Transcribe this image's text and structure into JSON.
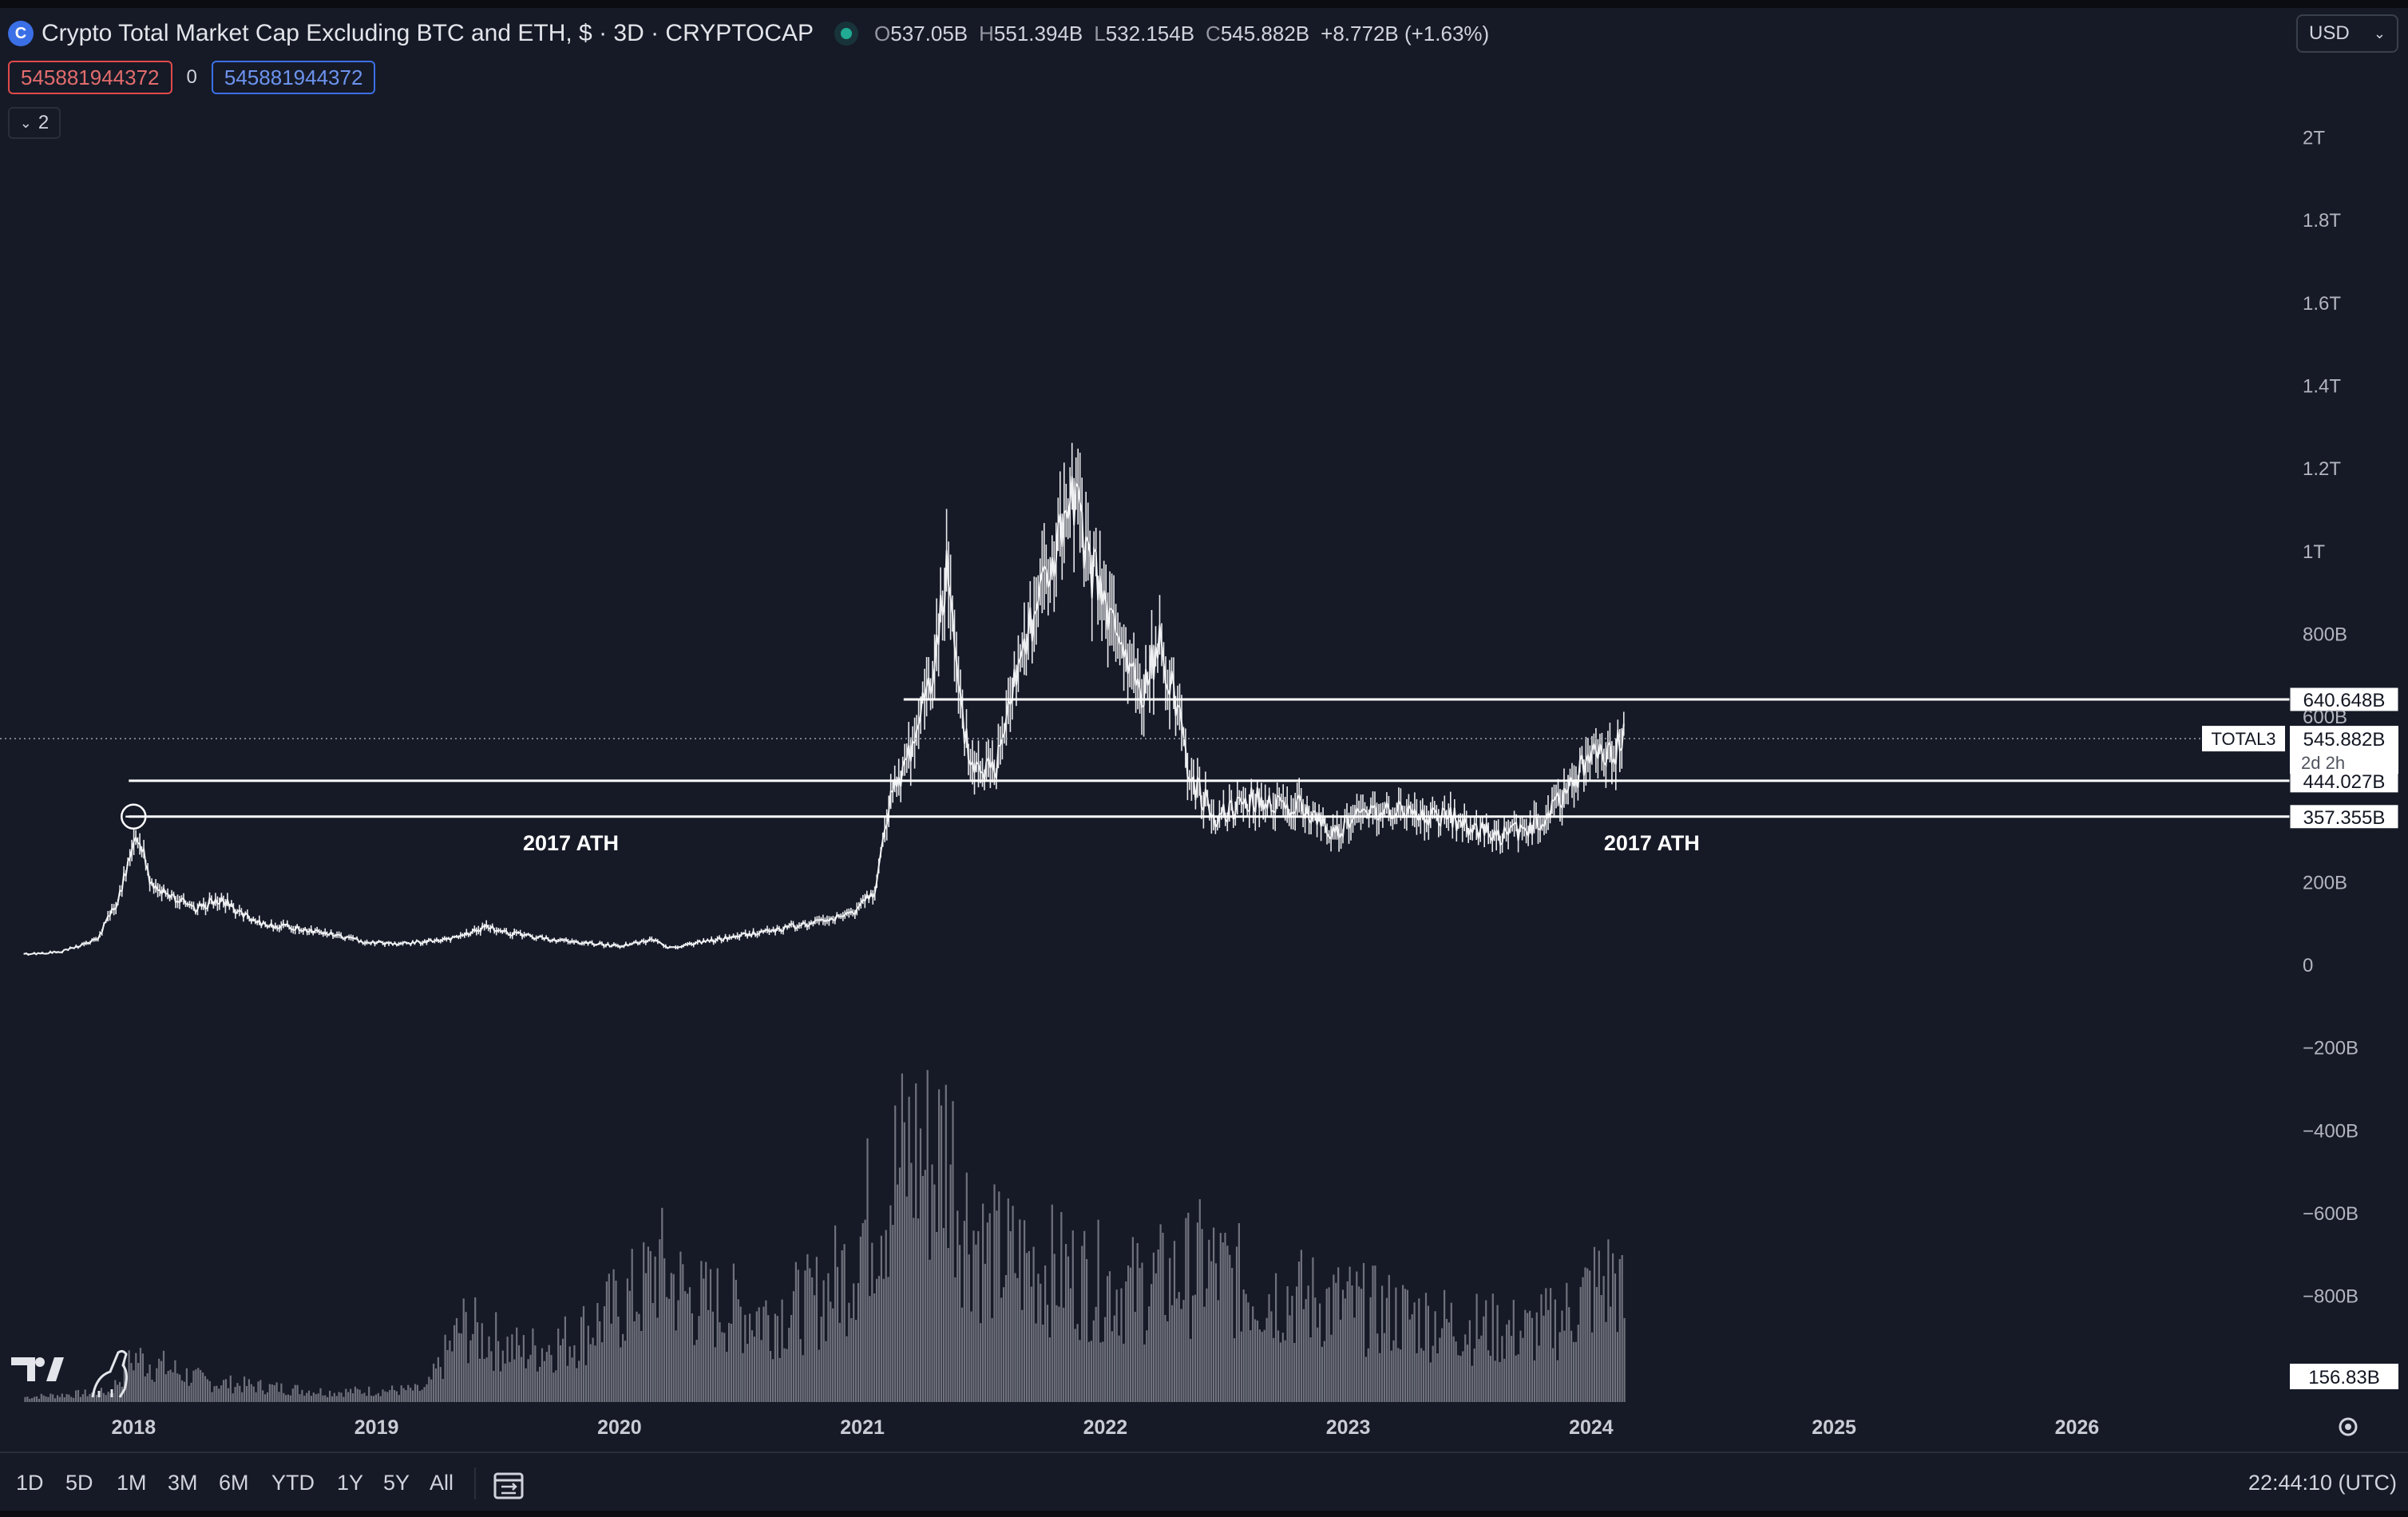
{
  "header": {
    "title": "Crypto Total Market Cap Excluding BTC and ETH, $ · 3D · CRYPTOCAP",
    "open_label": "O",
    "open": "537.05B",
    "high_label": "H",
    "high": "551.394B",
    "low_label": "L",
    "low": "532.154B",
    "close_label": "C",
    "close": "545.882B",
    "change": "+8.772B (+1.63%)",
    "currency": "USD"
  },
  "indicator": {
    "value_red": "545881944372",
    "middle": "0",
    "value_blue": "545881944372",
    "collapse_count": "2"
  },
  "chart_data": {
    "type": "line",
    "symbol": "TOTAL3",
    "ylim": [
      -1000000000000,
      2000000000000
    ],
    "y_ticks": [
      2000000000000,
      1800000000000,
      1600000000000,
      1400000000000,
      1200000000000,
      1000000000000,
      800000000000,
      600000000000,
      200000000000,
      0,
      -200000000000,
      -400000000000,
      -600000000000,
      -800000000000
    ],
    "y_tick_labels": [
      "2T",
      "1.8T",
      "1.6T",
      "1.4T",
      "1.2T",
      "1T",
      "800B",
      "600B",
      "200B",
      "0",
      "−200B",
      "−400B",
      "−600B",
      "−800B"
    ],
    "x_tick_labels": [
      "2018",
      "2019",
      "2020",
      "2021",
      "2022",
      "2023",
      "2024",
      "2025",
      "2026"
    ],
    "x_tick_years": [
      2018,
      2019,
      2020,
      2021,
      2022,
      2023,
      2024,
      2025,
      2026
    ],
    "xlim": [
      2017.45,
      2026.85
    ],
    "series": [
      {
        "x": [
          2017.55,
          2017.7,
          2017.85,
          2017.93,
          2017.98,
          2018.02,
          2018.07,
          2018.15,
          2018.25,
          2018.35,
          2018.5,
          2018.65,
          2018.8,
          2018.95,
          2019.1,
          2019.3,
          2019.45,
          2019.6,
          2019.8,
          2020.0,
          2020.15,
          2020.2,
          2020.4,
          2020.6,
          2020.8,
          2020.95,
          2021.05,
          2021.12,
          2021.2,
          2021.28,
          2021.35,
          2021.4,
          2021.45,
          2021.55,
          2021.6,
          2021.7,
          2021.8,
          2021.87,
          2021.95,
          2022.05,
          2022.15,
          2022.23,
          2022.3,
          2022.35,
          2022.45,
          2022.6,
          2022.8,
          2022.95,
          2023.1,
          2023.3,
          2023.45,
          2023.6,
          2023.75,
          2023.8,
          2023.9,
          2024.0,
          2024.05,
          2024.14
        ],
        "y": [
          25000000000,
          30000000000,
          60000000000,
          150000000000,
          240000000000,
          320000000000,
          200000000000,
          170000000000,
          130000000000,
          160000000000,
          100000000000,
          90000000000,
          75000000000,
          55000000000,
          50000000000,
          60000000000,
          90000000000,
          70000000000,
          55000000000,
          45000000000,
          60000000000,
          40000000000,
          60000000000,
          80000000000,
          100000000000,
          120000000000,
          180000000000,
          400000000000,
          520000000000,
          700000000000,
          950000000000,
          620000000000,
          480000000000,
          470000000000,
          650000000000,
          850000000000,
          1000000000000,
          1110000000000,
          950000000000,
          780000000000,
          650000000000,
          780000000000,
          620000000000,
          450000000000,
          360000000000,
          400000000000,
          380000000000,
          320000000000,
          380000000000,
          360000000000,
          350000000000,
          310000000000,
          330000000000,
          340000000000,
          420000000000,
          510000000000,
          490000000000,
          546000000000
        ]
      }
    ],
    "volume": {
      "label": "156.83B",
      "x": [
        2017.55,
        2017.9,
        2018.0,
        2018.3,
        2018.8,
        2019.2,
        2019.35,
        2019.6,
        2019.8,
        2020.1,
        2020.15,
        2020.3,
        2020.6,
        2020.8,
        2020.95,
        2021.0,
        2021.1,
        2021.2,
        2021.3,
        2021.35,
        2021.4,
        2021.5,
        2021.7,
        2021.9,
        2022.1,
        2022.3,
        2022.4,
        2022.6,
        2022.9,
        2023.2,
        2023.5,
        2023.75,
        2023.9,
        2024.0,
        2024.1,
        2024.14
      ],
      "v": [
        0.02,
        0.04,
        0.18,
        0.08,
        0.04,
        0.05,
        0.3,
        0.2,
        0.25,
        0.45,
        0.55,
        0.4,
        0.35,
        0.4,
        0.55,
        0.7,
        0.85,
        1.0,
        0.95,
        1.05,
        0.8,
        0.6,
        0.55,
        0.5,
        0.45,
        0.5,
        0.55,
        0.45,
        0.4,
        0.35,
        0.3,
        0.28,
        0.35,
        0.45,
        0.5,
        0.35
      ]
    },
    "horizontal_lines": [
      {
        "value": 640648000000,
        "label": "640.648B",
        "x_start": 2021.17
      },
      {
        "value": 444027000000,
        "label": "444.027B",
        "x_start": 2017.98
      },
      {
        "value": 357355000000,
        "label": "357.355B",
        "x_start": 2017.98
      }
    ],
    "last_price": {
      "value": 545882000000,
      "label": "545.882B",
      "symbol": "TOTAL3",
      "countdown": "2d 2h"
    },
    "annotations": [
      {
        "text": "2017 ATH",
        "x": 2019.8
      },
      {
        "text": "2017 ATH",
        "x": 2024.25
      }
    ],
    "ath_marker_x": 2018.0
  },
  "bottom": {
    "ranges": [
      "1D",
      "5D",
      "1M",
      "3M",
      "6M",
      "YTD",
      "1Y",
      "5Y",
      "All"
    ],
    "clock": "22:44:10 (UTC)"
  }
}
